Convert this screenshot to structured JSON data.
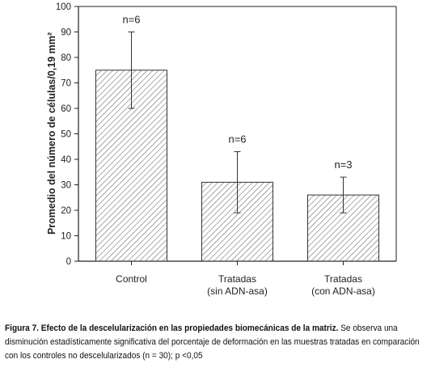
{
  "chart_data": {
    "type": "bar",
    "categories": [
      [
        "Control"
      ],
      [
        "Tratadas",
        "(sin ADN-asa)"
      ],
      [
        "Tratadas",
        "(con ADN-asa)"
      ]
    ],
    "values": [
      75,
      31,
      26
    ],
    "error_low": [
      60,
      19,
      19
    ],
    "error_high": [
      90,
      43,
      33
    ],
    "annotations": [
      "n=6",
      "n=6",
      "n=3"
    ],
    "ylabel": "Promedio del número de células/0,19 mm²",
    "xlabel": "",
    "ylim": [
      0,
      100
    ],
    "yticks": [
      0,
      10,
      20,
      30,
      40,
      50,
      60,
      70,
      80,
      90,
      100
    ],
    "fill": "hatched",
    "colors": {
      "bar_stroke": "#333333",
      "hatch": "#555555",
      "axis": "#222222"
    }
  },
  "caption": {
    "lead": "Figura 7. Efecto de la descelularización en las propiedades biomecánicas de la matriz.",
    "body": " Se observa una disminución estadísticamente significativa del porcentaje de deformación en las muestras tratadas en comparación con los controles no descelularizados (n = 30); p <0,05"
  }
}
